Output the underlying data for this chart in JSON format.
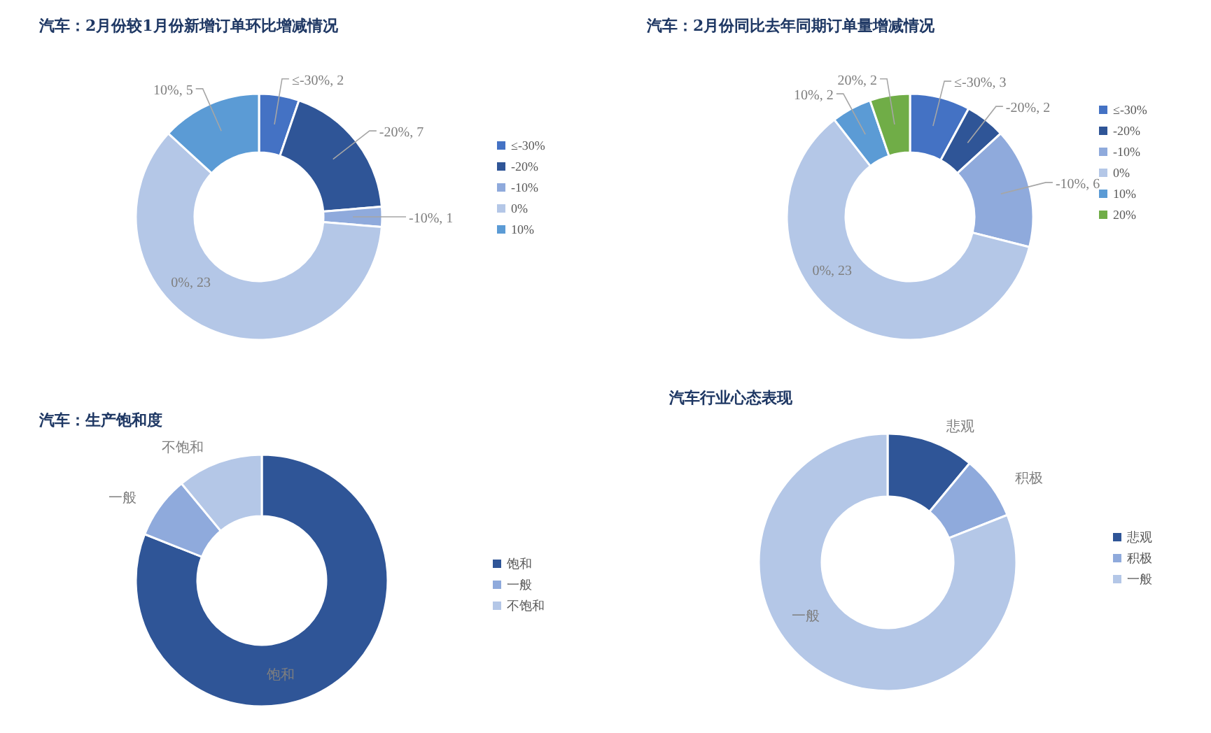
{
  "chart_data": [
    {
      "type": "donut",
      "title": "汽车：2月份较1月份新增订单环比增减情况",
      "categories": [
        "≤-30%",
        "-20%",
        "-10%",
        "0%",
        "10%"
      ],
      "values": [
        2,
        7,
        1,
        23,
        5
      ],
      "value_labels": [
        "≤-30%, 2",
        "-20%, 7",
        "-10%, 1",
        "0%, 23",
        "10%, 5"
      ],
      "colors": [
        "#4472c4",
        "#2f5597",
        "#8faadc",
        "#b4c7e7",
        "#5b9bd5"
      ],
      "legend": "right"
    },
    {
      "type": "donut",
      "title": "汽车：2月份同比去年同期订单量增减情况",
      "categories": [
        "≤-30%",
        "-20%",
        "-10%",
        "0%",
        "10%",
        "20%"
      ],
      "values": [
        3,
        2,
        6,
        23,
        2,
        2
      ],
      "value_labels": [
        "≤-30%, 3",
        "-20%, 2",
        "-10%, 6",
        "0%, 23",
        "10%, 2",
        "20%, 2"
      ],
      "colors": [
        "#4472c4",
        "#2f5597",
        "#8faadc",
        "#b4c7e7",
        "#5b9bd5",
        "#70ad47"
      ],
      "legend": "right"
    },
    {
      "type": "donut",
      "title": "汽车：生产饱和度",
      "categories": [
        "饱和",
        "一般",
        "不饱和"
      ],
      "values": [
        81,
        8,
        11
      ],
      "colors": [
        "#2f5597",
        "#8faadc",
        "#b4c7e7"
      ],
      "legend": "right"
    },
    {
      "type": "donut",
      "title": "汽车行业心态表现",
      "categories": [
        "悲观",
        "积极",
        "一般"
      ],
      "values": [
        11,
        8,
        81
      ],
      "colors": [
        "#2f5597",
        "#8faadc",
        "#b4c7e7"
      ],
      "legend": "right"
    }
  ]
}
